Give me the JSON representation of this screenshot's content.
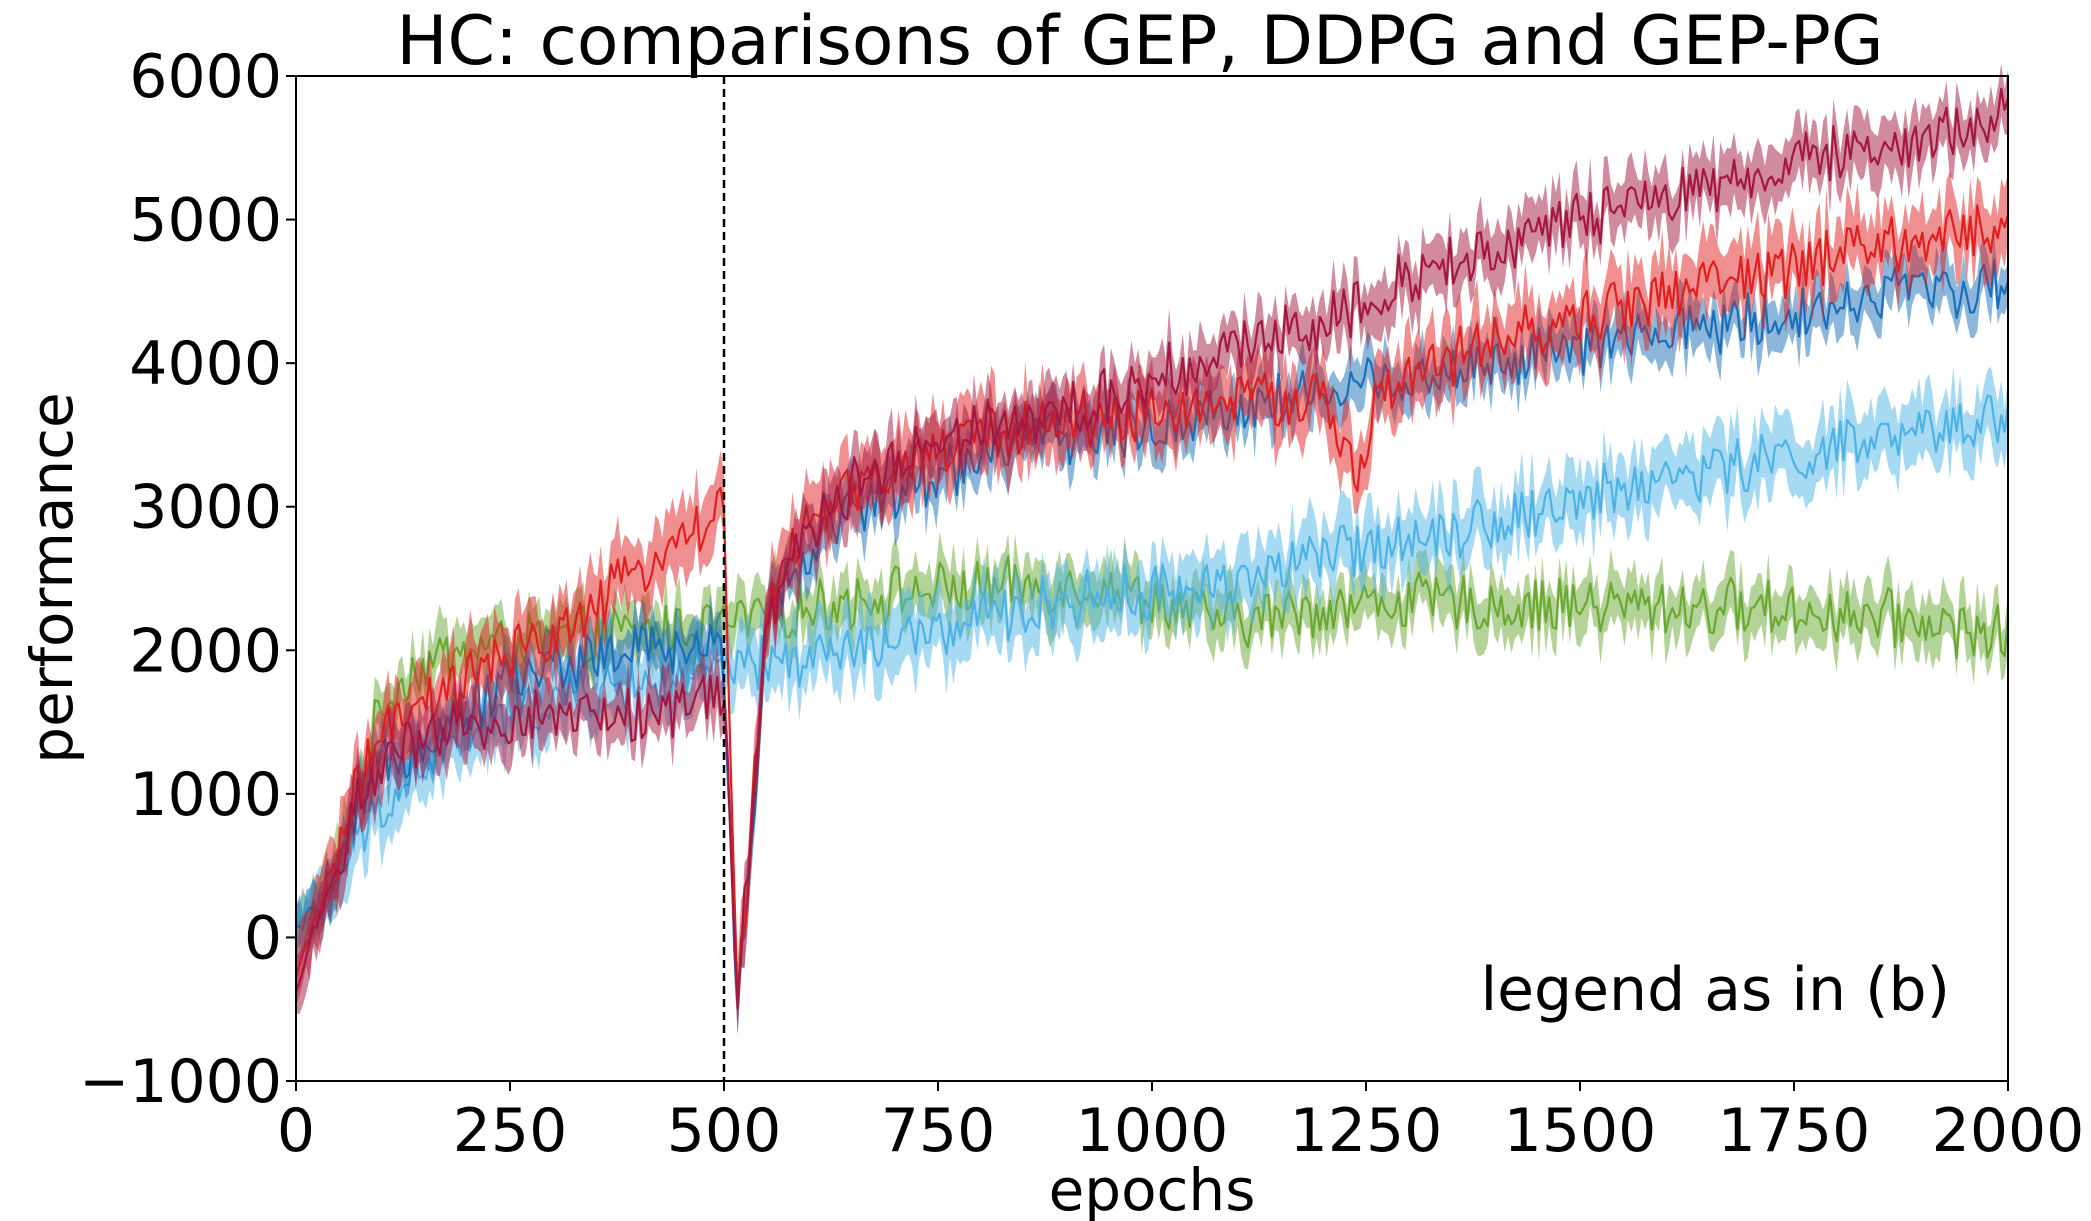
{
  "chart_data": {
    "type": "line",
    "title": "HC: comparisons of GEP, DDPG and GEP-PG",
    "xlabel": "epochs",
    "ylabel": "performance",
    "xlim": [
      0,
      2000
    ],
    "ylim": [
      -1000,
      6000
    ],
    "xticks": [
      0,
      250,
      500,
      750,
      1000,
      1250,
      1500,
      1750,
      2000
    ],
    "xtick_labels": [
      "0",
      "250",
      "500",
      "750",
      "1000",
      "1250",
      "1500",
      "1750",
      "2000"
    ],
    "yticks": [
      -1000,
      0,
      1000,
      2000,
      3000,
      4000,
      5000,
      6000
    ],
    "ytick_labels": [
      "−1000",
      "0",
      "1000",
      "2000",
      "3000",
      "4000",
      "5000",
      "6000"
    ],
    "annotation": "legend as in (b)",
    "vline": {
      "x": 500,
      "style": "dashed",
      "color": "#000000"
    },
    "series": [
      {
        "name": "green",
        "color": "#6aa832",
        "points": [
          [
            0,
            80
          ],
          [
            25,
            200
          ],
          [
            50,
            500
          ],
          [
            75,
            1100
          ],
          [
            100,
            1600
          ],
          [
            125,
            1800
          ],
          [
            150,
            1900
          ],
          [
            200,
            2000
          ],
          [
            250,
            2050
          ],
          [
            300,
            2080
          ],
          [
            350,
            2100
          ],
          [
            400,
            2120
          ],
          [
            450,
            2150
          ],
          [
            500,
            2180
          ],
          [
            600,
            2300
          ],
          [
            700,
            2400
          ],
          [
            800,
            2430
          ],
          [
            900,
            2450
          ],
          [
            950,
            2450
          ],
          [
            1000,
            2350
          ],
          [
            1050,
            2250
          ],
          [
            1100,
            2200
          ],
          [
            1150,
            2250
          ],
          [
            1200,
            2300
          ],
          [
            1300,
            2350
          ],
          [
            1400,
            2300
          ],
          [
            1500,
            2320
          ],
          [
            1600,
            2300
          ],
          [
            1700,
            2300
          ],
          [
            1800,
            2250
          ],
          [
            1900,
            2200
          ],
          [
            2000,
            2100
          ]
        ],
        "band": 180
      },
      {
        "name": "light-blue",
        "color": "#4db3e6",
        "points": [
          [
            0,
            80
          ],
          [
            25,
            200
          ],
          [
            50,
            400
          ],
          [
            75,
            700
          ],
          [
            100,
            900
          ],
          [
            150,
            1200
          ],
          [
            200,
            1400
          ],
          [
            250,
            1550
          ],
          [
            300,
            1650
          ],
          [
            350,
            1700
          ],
          [
            400,
            1750
          ],
          [
            450,
            1800
          ],
          [
            500,
            1850
          ],
          [
            600,
            1950
          ],
          [
            700,
            2050
          ],
          [
            800,
            2200
          ],
          [
            900,
            2350
          ],
          [
            1000,
            2400
          ],
          [
            1100,
            2500
          ],
          [
            1200,
            2650
          ],
          [
            1300,
            2800
          ],
          [
            1400,
            2900
          ],
          [
            1500,
            3050
          ],
          [
            1600,
            3200
          ],
          [
            1700,
            3300
          ],
          [
            1800,
            3400
          ],
          [
            1900,
            3500
          ],
          [
            2000,
            3650
          ]
        ],
        "band": 220
      },
      {
        "name": "dark-blue",
        "color": "#1a6fb8",
        "points": [
          [
            0,
            50
          ],
          [
            25,
            200
          ],
          [
            50,
            400
          ],
          [
            75,
            900
          ],
          [
            100,
            1200
          ],
          [
            150,
            1400
          ],
          [
            200,
            1600
          ],
          [
            250,
            1800
          ],
          [
            300,
            1900
          ],
          [
            350,
            1950
          ],
          [
            400,
            2000
          ],
          [
            450,
            2000
          ],
          [
            495,
            2000
          ],
          [
            500,
            1900
          ],
          [
            515,
            -400
          ],
          [
            530,
            400
          ],
          [
            550,
            2300
          ],
          [
            600,
            2700
          ],
          [
            650,
            3000
          ],
          [
            700,
            3100
          ],
          [
            750,
            3200
          ],
          [
            800,
            3400
          ],
          [
            900,
            3500
          ],
          [
            1000,
            3550
          ],
          [
            1100,
            3700
          ],
          [
            1200,
            3800
          ],
          [
            1300,
            3900
          ],
          [
            1400,
            4000
          ],
          [
            1500,
            4100
          ],
          [
            1600,
            4200
          ],
          [
            1700,
            4300
          ],
          [
            1800,
            4400
          ],
          [
            1900,
            4550
          ],
          [
            2000,
            4500
          ]
        ],
        "band": 170
      },
      {
        "name": "red",
        "color": "#e02020",
        "points": [
          [
            0,
            -300
          ],
          [
            25,
            200
          ],
          [
            50,
            600
          ],
          [
            75,
            1100
          ],
          [
            100,
            1400
          ],
          [
            150,
            1600
          ],
          [
            200,
            1800
          ],
          [
            250,
            1950
          ],
          [
            300,
            2100
          ],
          [
            350,
            2300
          ],
          [
            400,
            2550
          ],
          [
            450,
            2800
          ],
          [
            495,
            2950
          ],
          [
            500,
            2900
          ],
          [
            515,
            -400
          ],
          [
            530,
            600
          ],
          [
            550,
            2300
          ],
          [
            600,
            2900
          ],
          [
            650,
            3100
          ],
          [
            700,
            3250
          ],
          [
            750,
            3400
          ],
          [
            800,
            3500
          ],
          [
            900,
            3600
          ],
          [
            1000,
            3650
          ],
          [
            1100,
            3750
          ],
          [
            1200,
            3750
          ],
          [
            1240,
            3200
          ],
          [
            1260,
            3700
          ],
          [
            1300,
            3900
          ],
          [
            1400,
            4150
          ],
          [
            1500,
            4300
          ],
          [
            1600,
            4500
          ],
          [
            1700,
            4600
          ],
          [
            1800,
            4750
          ],
          [
            1900,
            4850
          ],
          [
            2000,
            4950
          ]
        ],
        "band": 230
      },
      {
        "name": "crimson",
        "color": "#a31840",
        "points": [
          [
            0,
            -400
          ],
          [
            25,
            150
          ],
          [
            50,
            500
          ],
          [
            75,
            1000
          ],
          [
            100,
            1200
          ],
          [
            150,
            1350
          ],
          [
            200,
            1450
          ],
          [
            250,
            1500
          ],
          [
            300,
            1550
          ],
          [
            350,
            1550
          ],
          [
            400,
            1550
          ],
          [
            450,
            1600
          ],
          [
            495,
            1700
          ],
          [
            500,
            1750
          ],
          [
            515,
            -400
          ],
          [
            530,
            500
          ],
          [
            550,
            2300
          ],
          [
            600,
            2800
          ],
          [
            650,
            3150
          ],
          [
            700,
            3350
          ],
          [
            750,
            3450
          ],
          [
            800,
            3600
          ],
          [
            900,
            3650
          ],
          [
            1000,
            3900
          ],
          [
            1100,
            4100
          ],
          [
            1200,
            4300
          ],
          [
            1300,
            4600
          ],
          [
            1400,
            4800
          ],
          [
            1500,
            5000
          ],
          [
            1600,
            5150
          ],
          [
            1700,
            5300
          ],
          [
            1800,
            5450
          ],
          [
            1900,
            5550
          ],
          [
            2000,
            5750
          ]
        ],
        "band": 190
      }
    ]
  }
}
